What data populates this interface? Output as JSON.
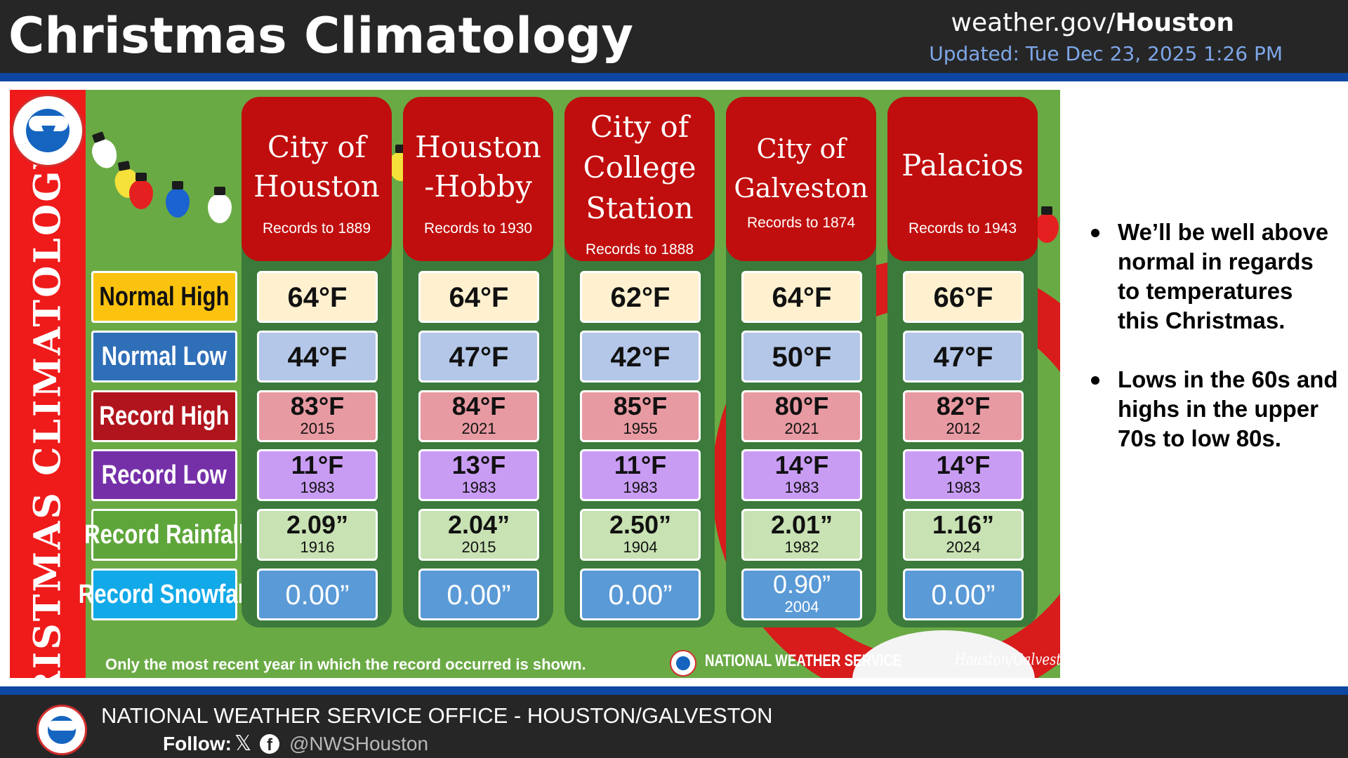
{
  "header": {
    "title": "Christmas Climatology",
    "site_prefix": "weather.gov/",
    "site_office": "Houston",
    "updated": "Updated: Tue Dec 23, 2025 1:26 PM"
  },
  "infographic": {
    "side_banner": "CHRISTMAS CLIMATOLOGY",
    "row_labels": {
      "normal_high": "Normal High",
      "normal_low": "Normal Low",
      "record_high": "Record High",
      "record_low": "Record Low",
      "record_rainfall": "Record Rainfall",
      "record_snowfall": "Record Snowfall"
    },
    "locations": [
      {
        "name": "City of\nHouston",
        "records": "Records to 1889",
        "normal_high": "64°F",
        "normal_low": "44°F",
        "record_high": "83°F",
        "record_high_year": "2015",
        "record_low": "11°F",
        "record_low_year": "1983",
        "record_rainfall": "2.09”",
        "record_rainfall_year": "1916",
        "record_snowfall": "0.00”",
        "record_snowfall_year": ""
      },
      {
        "name": "Houston\n-Hobby",
        "records": "Records to 1930",
        "normal_high": "64°F",
        "normal_low": "47°F",
        "record_high": "84°F",
        "record_high_year": "2021",
        "record_low": "13°F",
        "record_low_year": "1983",
        "record_rainfall": "2.04”",
        "record_rainfall_year": "2015",
        "record_snowfall": "0.00”",
        "record_snowfall_year": ""
      },
      {
        "name": "City of\nCollege\nStation",
        "records": "Records to 1888",
        "normal_high": "62°F",
        "normal_low": "42°F",
        "record_high": "85°F",
        "record_high_year": "1955",
        "record_low": "11°F",
        "record_low_year": "1983",
        "record_rainfall": "2.50”",
        "record_rainfall_year": "1904",
        "record_snowfall": "0.00”",
        "record_snowfall_year": ""
      },
      {
        "name": "City of\nGalveston",
        "records": "Records to 1874",
        "normal_high": "64°F",
        "normal_low": "50°F",
        "record_high": "80°F",
        "record_high_year": "2021",
        "record_low": "14°F",
        "record_low_year": "1983",
        "record_rainfall": "2.01”",
        "record_rainfall_year": "1982",
        "record_snowfall": "0.90”",
        "record_snowfall_year": "2004"
      },
      {
        "name": "Palacios",
        "records": "Records to 1943",
        "normal_high": "66°F",
        "normal_low": "47°F",
        "record_high": "82°F",
        "record_high_year": "2012",
        "record_low": "14°F",
        "record_low_year": "1983",
        "record_rainfall": "1.16”",
        "record_rainfall_year": "2024",
        "record_snowfall": "0.00”",
        "record_snowfall_year": ""
      }
    ],
    "footnote": "Only the most recent year in which the record occurred is shown.",
    "nws_wordmark": "NATIONAL WEATHER SERVICE",
    "signature": "Houston/Galveston",
    "colors": {
      "background_green": "#6aaa45",
      "banner_red": "#ef1a1a",
      "column_head_red": "#c00d0d"
    }
  },
  "bullets": [
    "We’ll be well above normal in regards to temperatures this Christmas.",
    "Lows in the 60s and highs in the upper 70s to low 80s."
  ],
  "footer": {
    "office": "NATIONAL WEATHER SERVICE OFFICE - HOUSTON/GALVESTON",
    "follow_label": "Follow:",
    "x_icon": "𝕏",
    "fb_icon": "f",
    "handle": "@NWSHouston"
  }
}
